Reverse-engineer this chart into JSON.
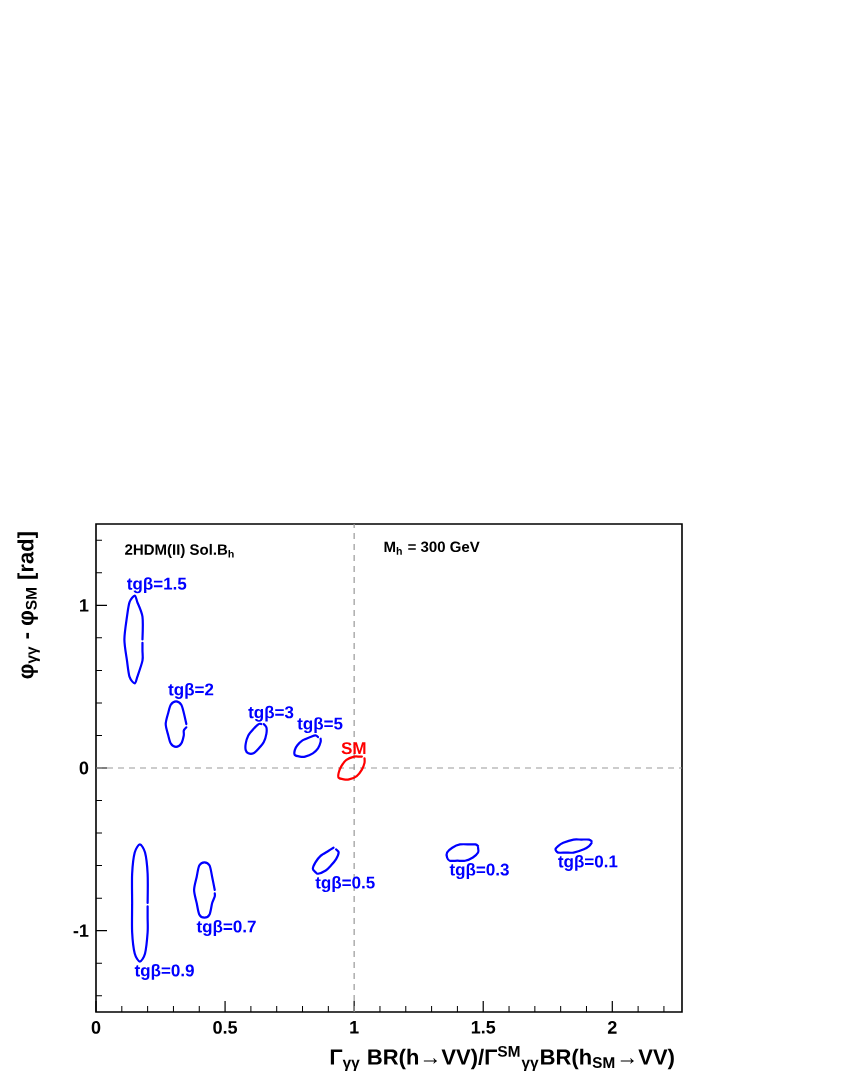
{
  "chart_data": {
    "type": "line",
    "xlabel": "Γ$_{γγ}$ BR(h→VV)/Γ$^{SM}$$_{γγ}$BR(h$_{SM}$→VV)",
    "ylabel": "φ$_{γγ}$ - φ$_{SM}$ [rad]",
    "annotations": [
      "2HDM(II) Sol.B$_{h}$",
      "M$_{h}$ = 300 GeV"
    ],
    "xlim": [
      0,
      2.27
    ],
    "ylim": [
      -1.5,
      1.5
    ],
    "xticks": [
      0,
      {
        "value": 0.1,
        "label": null
      },
      {
        "value": 0.2,
        "label": null
      },
      {
        "value": 0.3,
        "label": null
      },
      {
        "value": 0.4,
        "label": null
      },
      0.5,
      {
        "value": 0.6,
        "label": null
      },
      {
        "value": 0.7,
        "label": null
      },
      {
        "value": 0.8,
        "label": null
      },
      {
        "value": 0.9,
        "label": null
      },
      1,
      {
        "value": 1.1,
        "label": null
      },
      {
        "value": 1.2,
        "label": null
      },
      {
        "value": 1.3,
        "label": null
      },
      {
        "value": 1.4,
        "label": null
      },
      1.5,
      {
        "value": 1.6,
        "label": null
      },
      {
        "value": 1.7,
        "label": null
      },
      {
        "value": 1.8,
        "label": null
      },
      {
        "value": 1.9,
        "label": null
      },
      2,
      {
        "value": 2.1,
        "label": null
      },
      {
        "value": 2.2,
        "label": null
      }
    ],
    "yticks": [
      {
        "value": -1.4,
        "label": null
      },
      {
        "value": -1.2,
        "label": null
      },
      -1,
      {
        "value": -0.8,
        "label": null
      },
      {
        "value": -0.6,
        "label": null
      },
      {
        "value": -0.4,
        "label": null
      },
      {
        "value": -0.2,
        "label": null
      },
      0,
      {
        "value": 0.2,
        "label": null
      },
      {
        "value": 0.4,
        "label": null
      },
      {
        "value": 0.6,
        "label": null
      },
      {
        "value": 0.8,
        "label": null
      },
      1,
      {
        "value": 1.2,
        "label": null
      },
      {
        "value": 1.4,
        "label": null
      }
    ],
    "ref_lines": [
      {
        "axis": "x",
        "value": 1,
        "color": "#999999",
        "line_style": "dashed"
      },
      {
        "axis": "y",
        "value": 0,
        "color": "#999999",
        "line_style": "dashed"
      }
    ],
    "series": [
      {
        "name": "tgβ=1.5",
        "color": "#0000ff",
        "x": [
          0.18,
          0.18,
          0.16,
          0.15,
          0.13,
          0.12,
          0.11,
          0.12,
          0.13,
          0.15,
          0.16,
          0.18,
          0.18,
          0.18
        ],
        "values": [
          0.79,
          0.93,
          1.02,
          1.06,
          1.02,
          0.93,
          0.79,
          0.66,
          0.56,
          0.52,
          0.56,
          0.66,
          0.72,
          0.77
        ]
      },
      {
        "name": "tgβ=2",
        "color": "#0000ff",
        "x": [
          0.35,
          0.34,
          0.33,
          0.31,
          0.29,
          0.28,
          0.27,
          0.28,
          0.29,
          0.31,
          0.33,
          0.34,
          0.34,
          0.35
        ],
        "values": [
          0.27,
          0.34,
          0.39,
          0.41,
          0.39,
          0.34,
          0.27,
          0.2,
          0.15,
          0.13,
          0.15,
          0.2,
          0.23,
          0.25
        ]
      },
      {
        "name": "tgβ=3",
        "color": "#0000ff",
        "x": [
          0.65,
          0.66,
          0.66,
          0.65,
          0.63,
          0.61,
          0.59,
          0.58,
          0.58,
          0.59,
          0.61,
          0.63,
          0.64
        ],
        "values": [
          0.27,
          0.25,
          0.21,
          0.16,
          0.12,
          0.09,
          0.09,
          0.11,
          0.15,
          0.2,
          0.24,
          0.27,
          0.27
        ]
      },
      {
        "name": "tgβ=5",
        "color": "#0000ff",
        "x": [
          0.87,
          0.87,
          0.86,
          0.84,
          0.81,
          0.79,
          0.77,
          0.77,
          0.78,
          0.8,
          0.83,
          0.85,
          0.86
        ],
        "values": [
          0.18,
          0.16,
          0.12,
          0.09,
          0.07,
          0.07,
          0.08,
          0.11,
          0.14,
          0.17,
          0.19,
          0.2,
          0.19
        ]
      },
      {
        "name": "SM",
        "color": "#ff0000",
        "x": [
          1.04,
          1.04,
          1.03,
          1.01,
          0.98,
          0.96,
          0.94,
          0.94,
          0.95,
          0.97,
          1.0,
          1.02,
          1.03
        ],
        "values": [
          0.06,
          0.03,
          -0.01,
          -0.05,
          -0.07,
          -0.07,
          -0.06,
          -0.03,
          0.01,
          0.05,
          0.07,
          0.07,
          0.07
        ]
      },
      {
        "name": "tgβ=0.9",
        "color": "#0000ff",
        "x": [
          0.2,
          0.2,
          0.19,
          0.17,
          0.15,
          0.14,
          0.14,
          0.14,
          0.15,
          0.17,
          0.19,
          0.2,
          0.2,
          0.2
        ],
        "values": [
          -0.83,
          -0.65,
          -0.52,
          -0.47,
          -0.52,
          -0.65,
          -0.83,
          -1.01,
          -1.14,
          -1.19,
          -1.14,
          -1.01,
          -0.92,
          -0.85
        ]
      },
      {
        "name": "tgβ=0.7",
        "color": "#0000ff",
        "x": [
          0.46,
          0.45,
          0.44,
          0.42,
          0.4,
          0.39,
          0.38,
          0.39,
          0.4,
          0.42,
          0.44,
          0.45,
          0.46,
          0.46
        ],
        "values": [
          -0.75,
          -0.67,
          -0.6,
          -0.58,
          -0.6,
          -0.67,
          -0.75,
          -0.83,
          -0.9,
          -0.92,
          -0.9,
          -0.83,
          -0.79,
          -0.77
        ]
      },
      {
        "name": "tgβ=0.5",
        "color": "#0000ff",
        "x": [
          0.93,
          0.94,
          0.93,
          0.91,
          0.89,
          0.86,
          0.85,
          0.84,
          0.85,
          0.87,
          0.9,
          0.92
        ],
        "values": [
          -0.5,
          -0.52,
          -0.56,
          -0.6,
          -0.63,
          -0.65,
          -0.64,
          -0.62,
          -0.58,
          -0.54,
          -0.51,
          -0.49
        ]
      },
      {
        "name": "tgβ=0.3",
        "color": "#0000ff",
        "x": [
          1.48,
          1.48,
          1.46,
          1.43,
          1.4,
          1.37,
          1.36,
          1.36,
          1.38,
          1.41,
          1.45,
          1.47,
          1.48
        ],
        "values": [
          -0.49,
          -0.52,
          -0.55,
          -0.57,
          -0.57,
          -0.57,
          -0.55,
          -0.52,
          -0.49,
          -0.47,
          -0.47,
          -0.47,
          -0.48
        ]
      },
      {
        "name": "tgβ=0.1",
        "color": "#0000ff",
        "x": [
          1.92,
          1.91,
          1.89,
          1.85,
          1.82,
          1.79,
          1.78,
          1.79,
          1.81,
          1.85,
          1.88,
          1.91,
          1.92
        ],
        "values": [
          -0.46,
          -0.48,
          -0.5,
          -0.52,
          -0.52,
          -0.52,
          -0.5,
          -0.48,
          -0.46,
          -0.44,
          -0.44,
          -0.44,
          -0.45
        ]
      }
    ]
  }
}
